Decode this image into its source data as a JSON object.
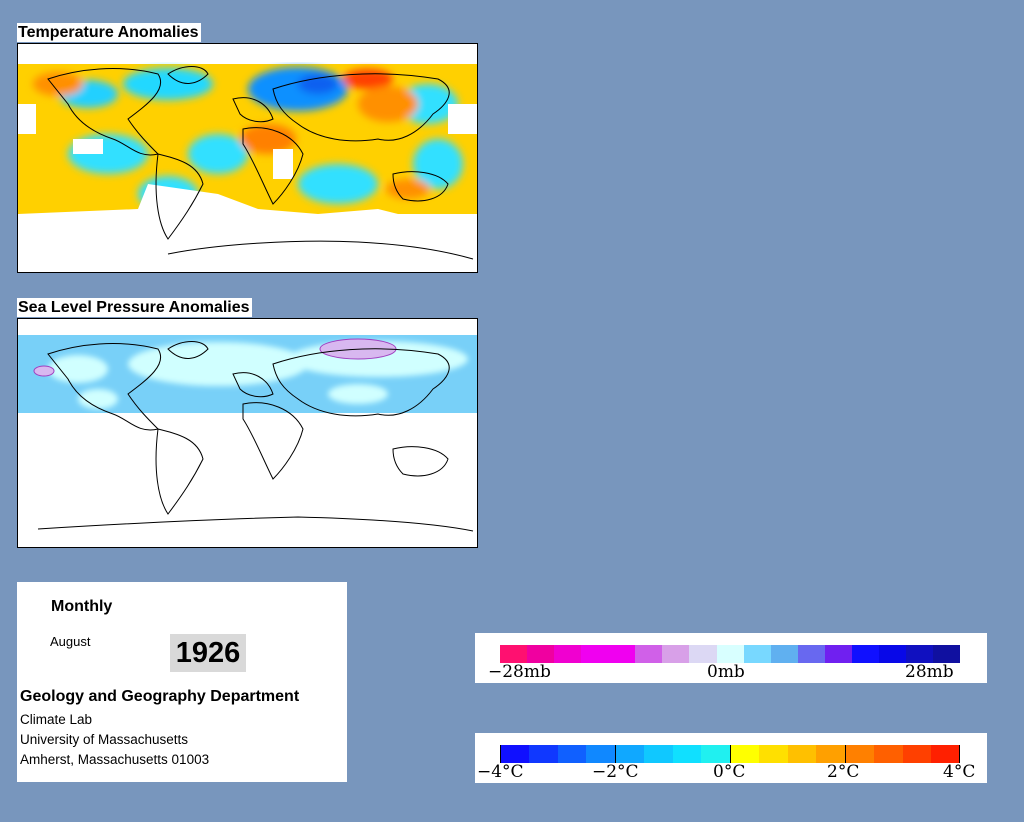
{
  "panels": {
    "temperature": {
      "title": "Temperature Anomalies"
    },
    "pressure": {
      "title": "Sea Level Pressure Anomalies"
    }
  },
  "info": {
    "frequency": "Monthly",
    "month": "August",
    "year": "1926",
    "department": "Geology and Geography Department",
    "lab": "Climate Lab",
    "university": "University of Massachusetts",
    "address": "Amherst, Massachusetts 01003"
  },
  "pressure_legend": {
    "labels": [
      "−28mb",
      "0mb",
      "28mb"
    ],
    "colors": [
      "#ff1070",
      "#f000a0",
      "#f000d0",
      "#f000f0",
      "#f000f0",
      "#d060e8",
      "#d8a0e8",
      "#dcd8f4",
      "#d8ffff",
      "#78d8ff",
      "#60b0f0",
      "#6868f0",
      "#7020f0",
      "#1010ff",
      "#0808e8",
      "#1010c0",
      "#1010a0"
    ]
  },
  "temperature_legend": {
    "labels": [
      "−4°C",
      "−2°C",
      "0°C",
      "2°C",
      "4°C"
    ],
    "colors": [
      "#1010ff",
      "#1038ff",
      "#1060ff",
      "#1088ff",
      "#10a8ff",
      "#10c8ff",
      "#10e0ff",
      "#20f0f0",
      "#ffff00",
      "#ffe000",
      "#ffc000",
      "#ffa000",
      "#ff8000",
      "#ff6000",
      "#ff4000",
      "#ff2000"
    ]
  }
}
